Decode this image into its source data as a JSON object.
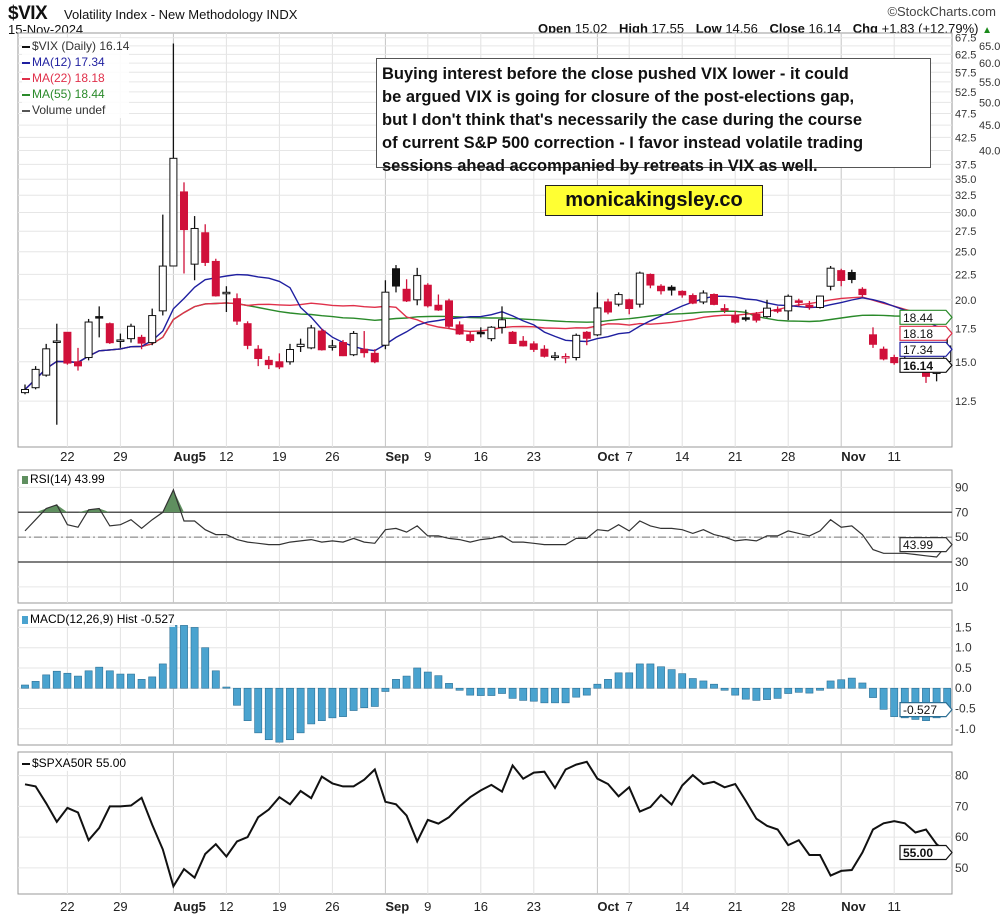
{
  "header": {
    "symbol": "$VIX",
    "description": "Volatility Index - New Methodology  INDX",
    "copyright": "©StockCharts.com",
    "date": "15-Nov-2024",
    "open_label": "Open",
    "open": "15.02",
    "high_label": "High",
    "high": "17.55",
    "low_label": "Low",
    "low": "14.56",
    "close_label": "Close",
    "close": "16.14",
    "chg_label": "Chg",
    "chg": "+1.83 (+12.79%)",
    "chg_arrow": "▲"
  },
  "annotation": {
    "lines": [
      "Buying interest before the close pushed VIX lower - it could",
      "be argued VIX is going for closure of the post-elections gap,",
      "but I don't think that's necessarily the case during the course",
      "of current S&P 500 correction - I favor instead volatile trading",
      "sessions ahead accompanied by retreats in VIX as well."
    ],
    "brand": "monicakingsley.co"
  },
  "colors": {
    "up": "#111111",
    "down": "#d0103a",
    "ma12": "#1f1fa0",
    "ma22": "#e0304a",
    "ma55": "#2a8a2a",
    "rsi_fill": "#5f8f5f",
    "macd_hist": "#4aa3cf"
  },
  "chart_data": [
    {
      "type": "candlestick",
      "title": "$VIX (Daily) 16.14",
      "scale": "log",
      "ylim": [
        10.1,
        69
      ],
      "yticks": [
        "12.5",
        "15.0",
        "17.5",
        "20.0",
        "22.5",
        "25.0",
        "27.5",
        "30.0",
        "32.5",
        "35.0",
        "37.5",
        "40.0",
        "42.5",
        "45.0",
        "47.5",
        "50.0",
        "52.5",
        "55.0",
        "57.5",
        "60.0",
        "62.5",
        "65.0",
        "67.5"
      ],
      "xtick_labels": [
        {
          "label": "22",
          "index": 4,
          "month": false
        },
        {
          "label": "29",
          "index": 9,
          "month": false
        },
        {
          "label": "Aug5",
          "index": 14,
          "month": true
        },
        {
          "label": "12",
          "index": 19,
          "month": false
        },
        {
          "label": "19",
          "index": 24,
          "month": false
        },
        {
          "label": "26",
          "index": 29,
          "month": false
        },
        {
          "label": "Sep",
          "index": 34,
          "month": true
        },
        {
          "label": "9",
          "index": 38,
          "month": false
        },
        {
          "label": "16",
          "index": 43,
          "month": false
        },
        {
          "label": "23",
          "index": 48,
          "month": false
        },
        {
          "label": "Oct",
          "index": 54,
          "month": true
        },
        {
          "label": "7",
          "index": 57,
          "month": false
        },
        {
          "label": "14",
          "index": 62,
          "month": false
        },
        {
          "label": "21",
          "index": 67,
          "month": false
        },
        {
          "label": "28",
          "index": 72,
          "month": false
        },
        {
          "label": "Nov",
          "index": 77,
          "month": true
        },
        {
          "label": "11",
          "index": 82,
          "month": false
        }
      ],
      "legend": [
        {
          "label": "$VIX (Daily) 16.14",
          "color": "#111111"
        },
        {
          "label": "MA(12) 17.34",
          "color": "#1f1fa0"
        },
        {
          "label": "MA(22) 18.18",
          "color": "#e0304a"
        },
        {
          "label": "MA(55) 18.44",
          "color": "#2a8a2a"
        },
        {
          "label": "Volume undef",
          "color": "#555555"
        }
      ],
      "legend_placement": "top-left",
      "value_tags": [
        {
          "label": "18.44",
          "value": 18.44,
          "color": "#2a8a2a"
        },
        {
          "label": "18.18",
          "value": 18.18,
          "color": "#e0304a"
        },
        {
          "label": "17.34",
          "value": 17.34,
          "color": "#1f1fa0"
        },
        {
          "label": "16.14",
          "value": 16.14,
          "color": "#111111"
        }
      ],
      "ma_periods": [
        12,
        22,
        55
      ],
      "ohlc": [
        [
          13.0,
          13.5,
          12.9,
          13.19
        ],
        [
          13.3,
          14.7,
          13.2,
          14.48
        ],
        [
          14.1,
          16.3,
          14.0,
          15.93
        ],
        [
          16.5,
          17.9,
          11.2,
          16.52
        ],
        [
          17.2,
          17.2,
          14.8,
          14.91
        ],
        [
          15.0,
          16.0,
          14.4,
          14.72
        ],
        [
          15.3,
          18.3,
          15.1,
          18.04
        ],
        [
          18.5,
          19.4,
          16.8,
          18.46
        ],
        [
          17.9,
          18.0,
          16.3,
          16.39
        ],
        [
          16.6,
          17.1,
          16.0,
          16.6
        ],
        [
          16.7,
          17.9,
          16.4,
          17.69
        ],
        [
          16.8,
          17.0,
          15.9,
          16.36
        ],
        [
          16.4,
          19.2,
          16.2,
          18.59
        ],
        [
          19.0,
          29.7,
          18.6,
          23.39
        ],
        [
          23.4,
          65.7,
          23.4,
          38.57
        ],
        [
          33.0,
          34.5,
          22.6,
          27.71
        ],
        [
          23.6,
          29.5,
          21.9,
          27.85
        ],
        [
          27.3,
          28.4,
          23.4,
          23.79
        ],
        [
          23.9,
          24.2,
          20.3,
          20.37
        ],
        [
          20.7,
          21.3,
          18.9,
          20.71
        ],
        [
          20.1,
          20.6,
          17.8,
          18.12
        ],
        [
          17.9,
          18.1,
          15.9,
          16.19
        ],
        [
          15.9,
          16.2,
          14.7,
          15.23
        ],
        [
          15.1,
          15.4,
          14.5,
          14.8
        ],
        [
          15.0,
          15.6,
          14.5,
          14.65
        ],
        [
          15.0,
          16.3,
          14.8,
          15.88
        ],
        [
          16.1,
          16.7,
          15.7,
          16.27
        ],
        [
          16.0,
          17.8,
          15.9,
          17.55
        ],
        [
          17.3,
          17.5,
          15.8,
          15.86
        ],
        [
          16.1,
          16.6,
          15.8,
          16.15
        ],
        [
          16.4,
          16.6,
          15.4,
          15.43
        ],
        [
          15.5,
          17.3,
          15.4,
          17.11
        ],
        [
          15.9,
          17.3,
          15.3,
          15.65
        ],
        [
          15.6,
          15.9,
          14.9,
          15.0
        ],
        [
          16.2,
          21.9,
          15.9,
          20.72
        ],
        [
          23.1,
          23.5,
          20.7,
          21.32
        ],
        [
          21.0,
          22.0,
          19.8,
          19.9
        ],
        [
          20.0,
          23.2,
          19.5,
          22.38
        ],
        [
          21.4,
          21.6,
          19.3,
          19.45
        ],
        [
          19.5,
          20.5,
          19.0,
          19.08
        ],
        [
          19.9,
          20.1,
          17.5,
          17.69
        ],
        [
          17.8,
          18.1,
          17.0,
          17.07
        ],
        [
          17.0,
          17.3,
          16.4,
          16.56
        ],
        [
          17.2,
          17.6,
          16.8,
          17.14
        ],
        [
          16.7,
          17.7,
          16.5,
          17.61
        ],
        [
          17.6,
          19.4,
          17.1,
          18.23
        ],
        [
          17.2,
          17.3,
          16.3,
          16.33
        ],
        [
          16.5,
          16.9,
          16.1,
          16.15
        ],
        [
          16.3,
          16.5,
          15.7,
          15.89
        ],
        [
          15.9,
          16.2,
          15.3,
          15.39
        ],
        [
          15.4,
          15.7,
          15.1,
          15.41
        ],
        [
          15.3,
          15.6,
          14.9,
          15.37
        ],
        [
          15.3,
          17.1,
          15.1,
          16.96
        ],
        [
          17.2,
          17.3,
          16.2,
          16.73
        ],
        [
          17.0,
          20.7,
          16.9,
          19.26
        ],
        [
          19.8,
          20.1,
          18.7,
          18.9
        ],
        [
          19.6,
          20.7,
          19.4,
          20.49
        ],
        [
          20.0,
          20.1,
          18.7,
          19.21
        ],
        [
          19.6,
          22.8,
          19.3,
          22.64
        ],
        [
          22.5,
          22.6,
          21.1,
          21.42
        ],
        [
          21.3,
          21.5,
          20.5,
          20.86
        ],
        [
          21.2,
          21.4,
          20.4,
          20.93
        ],
        [
          20.8,
          20.9,
          20.2,
          20.46
        ],
        [
          20.4,
          20.6,
          19.6,
          19.7
        ],
        [
          19.8,
          20.9,
          19.6,
          20.64
        ],
        [
          20.5,
          20.6,
          19.5,
          19.58
        ],
        [
          19.2,
          19.6,
          18.8,
          19.11
        ],
        [
          18.6,
          19.0,
          17.9,
          18.03
        ],
        [
          18.4,
          19.1,
          18.1,
          18.37
        ],
        [
          18.7,
          18.9,
          18.0,
          18.2
        ],
        [
          18.5,
          20.0,
          18.4,
          19.24
        ],
        [
          19.1,
          19.4,
          18.8,
          19.08
        ],
        [
          19.0,
          20.5,
          18.2,
          20.33
        ],
        [
          19.9,
          20.1,
          19.4,
          19.8
        ],
        [
          19.5,
          19.9,
          19.1,
          19.34
        ],
        [
          19.3,
          20.4,
          19.2,
          20.35
        ],
        [
          21.3,
          23.4,
          20.9,
          23.16
        ],
        [
          22.9,
          23.1,
          21.3,
          21.88
        ],
        [
          22.7,
          23.0,
          21.6,
          21.98
        ],
        [
          21.0,
          21.2,
          20.3,
          20.49
        ],
        [
          17.0,
          17.6,
          16.0,
          16.27
        ],
        [
          15.9,
          16.1,
          15.1,
          15.2
        ],
        [
          15.3,
          15.5,
          14.8,
          14.94
        ],
        [
          15.2,
          15.4,
          14.8,
          14.97
        ],
        [
          14.9,
          15.1,
          14.3,
          14.71
        ],
        [
          14.9,
          15.0,
          13.6,
          14.02
        ],
        [
          14.3,
          14.4,
          13.7,
          14.31
        ],
        [
          15.02,
          17.55,
          14.56,
          16.14
        ]
      ]
    },
    {
      "type": "line",
      "title": "RSI(14) 43.99",
      "ylim": [
        -3,
        104
      ],
      "yticks": [
        "90",
        "70",
        "50",
        "30",
        "10"
      ],
      "reference_lines": [
        70,
        50,
        30
      ],
      "value_tag": "43.99",
      "values": [
        55,
        64,
        73,
        76,
        60,
        58,
        72,
        73,
        59,
        60,
        64,
        57,
        64,
        70,
        88,
        63,
        63,
        56,
        52,
        52,
        48,
        46,
        45,
        44,
        44,
        46,
        47,
        48,
        46,
        47,
        46,
        49,
        46,
        45,
        56,
        57,
        54,
        59,
        51,
        51,
        49,
        48,
        46,
        48,
        49,
        51,
        46,
        46,
        45,
        44,
        44,
        44,
        49,
        49,
        56,
        55,
        60,
        55,
        63,
        59,
        57,
        57,
        56,
        53,
        56,
        52,
        50,
        47,
        48,
        47,
        51,
        51,
        55,
        53,
        51,
        55,
        64,
        58,
        59,
        52,
        40,
        37,
        37,
        37,
        36,
        35,
        34,
        43.99
      ]
    },
    {
      "type": "bar",
      "title": "MACD(12,26,9) Hist -0.527",
      "ylim": [
        -1.4,
        1.93
      ],
      "yticks": [
        "1.5",
        "1.0",
        "0.5",
        "0.0",
        "-0.5",
        "-1.0"
      ],
      "value_tag": "-0.527",
      "values": [
        0.08,
        0.17,
        0.33,
        0.42,
        0.37,
        0.3,
        0.43,
        0.52,
        0.43,
        0.35,
        0.35,
        0.22,
        0.28,
        0.6,
        1.55,
        1.55,
        1.5,
        1.0,
        0.43,
        0.03,
        -0.42,
        -0.8,
        -1.1,
        -1.27,
        -1.33,
        -1.27,
        -1.1,
        -0.88,
        -0.8,
        -0.73,
        -0.7,
        -0.55,
        -0.48,
        -0.45,
        -0.08,
        0.22,
        0.3,
        0.5,
        0.4,
        0.31,
        0.12,
        -0.05,
        -0.17,
        -0.18,
        -0.18,
        -0.13,
        -0.25,
        -0.3,
        -0.32,
        -0.36,
        -0.36,
        -0.36,
        -0.22,
        -0.17,
        0.1,
        0.22,
        0.38,
        0.38,
        0.6,
        0.6,
        0.53,
        0.46,
        0.36,
        0.24,
        0.18,
        0.1,
        -0.05,
        -0.17,
        -0.27,
        -0.3,
        -0.28,
        -0.25,
        -0.13,
        -0.1,
        -0.12,
        -0.05,
        0.18,
        0.21,
        0.25,
        0.13,
        -0.23,
        -0.52,
        -0.7,
        -0.73,
        -0.77,
        -0.8,
        -0.73,
        -0.527
      ]
    },
    {
      "type": "line",
      "title": "$SPXA50R 55.00",
      "ylim": [
        41.5,
        87.7
      ],
      "yticks": [
        "80",
        "70",
        "60",
        "50"
      ],
      "value_tag": "55.00",
      "values": [
        77.2,
        76.5,
        71,
        65,
        69.5,
        68,
        59,
        63,
        70,
        70,
        70.3,
        72.8,
        64,
        56,
        44,
        49.6,
        46.8,
        54.5,
        57.7,
        53.7,
        58.6,
        60,
        66.5,
        69,
        73,
        70.7,
        75,
        72.7,
        79.7,
        77.5,
        76.5,
        76.5,
        78.7,
        82,
        71.5,
        70.7,
        67,
        58.6,
        65.6,
        64.4,
        66.5,
        70,
        73,
        75.2,
        77,
        74.8,
        83.3,
        79,
        81,
        81.3,
        76,
        82,
        83.6,
        84.5,
        79,
        77.3,
        73.3,
        76.2,
        68.3,
        69.8,
        73.7,
        70.6,
        76.8,
        80.2,
        77.3,
        78,
        76.2,
        77.3,
        71.8,
        66,
        63.7,
        62.5,
        57.4,
        59,
        54.2,
        54.2,
        47.5,
        49,
        49.3,
        55,
        62.5,
        64.5,
        65.2,
        64.5,
        61.5,
        62.5,
        57.7,
        55
      ]
    }
  ]
}
